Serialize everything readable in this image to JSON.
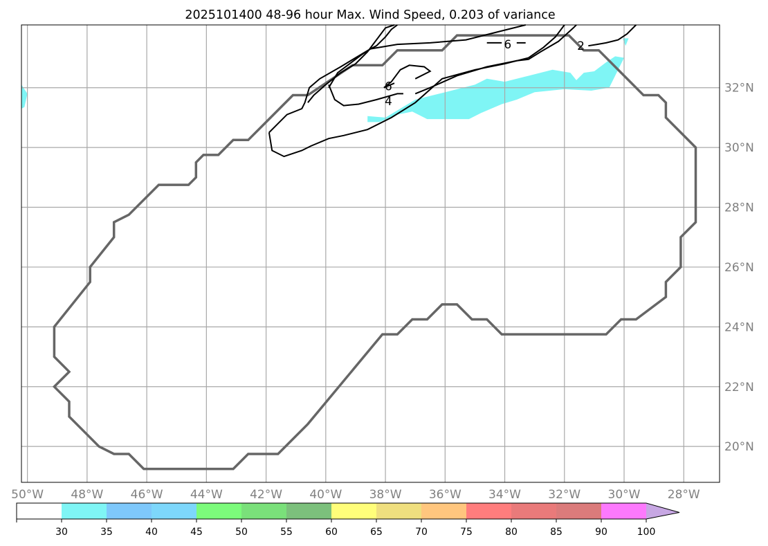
{
  "chart_data": {
    "type": "map-filled-contour",
    "title": "2025101400 48-96 hour Max. Wind Speed, 0.203 of variance",
    "lon_range": [
      -50.2,
      -26.8
    ],
    "lat_range": [
      18.8,
      34.1
    ],
    "lon_ticks": [
      -50,
      -48,
      -46,
      -44,
      -42,
      -40,
      -38,
      -36,
      -34,
      -32,
      -30,
      -28
    ],
    "lon_tick_labels": [
      "50°W",
      "48°W",
      "46°W",
      "44°W",
      "42°W",
      "40°W",
      "38°W",
      "36°W",
      "34°W",
      "32°W",
      "30°W",
      "28°W"
    ],
    "lat_ticks": [
      20,
      22,
      24,
      26,
      28,
      30,
      32
    ],
    "lat_tick_labels": [
      "20°N",
      "22°N",
      "24°N",
      "26°N",
      "28°N",
      "30°N",
      "32°N"
    ],
    "grid": true,
    "colorbar": {
      "boundaries": [
        0,
        30,
        35,
        40,
        45,
        50,
        55,
        60,
        65,
        70,
        75,
        80,
        85,
        90,
        100
      ],
      "colors": [
        "#ffffff",
        "#7ff5f5",
        "#7ec8fb",
        "#7dd7fb",
        "#7cfb7b",
        "#7ae07a",
        "#7cc07c",
        "#fffe7a",
        "#efdf7f",
        "#ffc67e",
        "#ff7d7d",
        "#e97a7a",
        "#db7b7b",
        "#fd79fd"
      ],
      "extend_color": "#c7a7e3",
      "tick_values": [
        30,
        35,
        40,
        45,
        50,
        55,
        60,
        65,
        70,
        75,
        80,
        85,
        90,
        100
      ],
      "tick_labels": [
        "30",
        "35",
        "40",
        "45",
        "50",
        "55",
        "60",
        "65",
        "70",
        "75",
        "80",
        "85",
        "90",
        "100"
      ]
    },
    "domain_outline": {
      "color": "#666666",
      "points": [
        [
          -49.1,
          24.0
        ],
        [
          -49.1,
          23.0
        ],
        [
          -48.6,
          22.5
        ],
        [
          -49.1,
          22.0
        ],
        [
          -48.6,
          21.5
        ],
        [
          -48.6,
          21.0
        ],
        [
          -47.6,
          20.0
        ],
        [
          -47.1,
          19.75
        ],
        [
          -46.6,
          19.75
        ],
        [
          -46.1,
          19.25
        ],
        [
          -43.1,
          19.25
        ],
        [
          -42.6,
          19.75
        ],
        [
          -41.6,
          19.75
        ],
        [
          -40.6,
          20.75
        ],
        [
          -38.1,
          23.75
        ],
        [
          -37.6,
          23.75
        ],
        [
          -37.1,
          24.25
        ],
        [
          -36.6,
          24.25
        ],
        [
          -36.1,
          24.75
        ],
        [
          -35.6,
          24.75
        ],
        [
          -35.1,
          24.25
        ],
        [
          -34.6,
          24.25
        ],
        [
          -34.1,
          23.75
        ],
        [
          -30.6,
          23.75
        ],
        [
          -30.1,
          24.25
        ],
        [
          -29.6,
          24.25
        ],
        [
          -28.6,
          25.0
        ],
        [
          -28.6,
          25.5
        ],
        [
          -28.1,
          26.0
        ],
        [
          -28.1,
          27.0
        ],
        [
          -27.6,
          27.5
        ],
        [
          -27.6,
          30.0
        ],
        [
          -28.6,
          31.0
        ],
        [
          -28.6,
          31.5
        ],
        [
          -28.85,
          31.75
        ],
        [
          -29.35,
          31.75
        ],
        [
          -30.85,
          33.25
        ],
        [
          -31.35,
          33.25
        ],
        [
          -31.85,
          33.75
        ],
        [
          -35.6,
          33.75
        ],
        [
          -36.1,
          33.25
        ],
        [
          -37.6,
          33.25
        ],
        [
          -38.1,
          32.75
        ],
        [
          -39.1,
          32.75
        ],
        [
          -40.6,
          31.75
        ],
        [
          -41.1,
          31.75
        ],
        [
          -42.6,
          30.25
        ],
        [
          -43.1,
          30.25
        ],
        [
          -43.6,
          29.75
        ],
        [
          -44.1,
          29.75
        ],
        [
          -44.35,
          29.5
        ],
        [
          -44.35,
          29.0
        ],
        [
          -44.6,
          28.75
        ],
        [
          -45.6,
          28.75
        ],
        [
          -46.6,
          27.75
        ],
        [
          -47.1,
          27.5
        ],
        [
          -47.1,
          27.0
        ],
        [
          -47.9,
          26.0
        ],
        [
          -47.9,
          25.5
        ]
      ]
    },
    "filled_regions": [
      {
        "level": 30,
        "color": "#7ff5f5",
        "points": [
          [
            -50.2,
            32.1
          ],
          [
            -50.0,
            31.8
          ],
          [
            -50.1,
            31.35
          ],
          [
            -50.2,
            31.3
          ]
        ]
      },
      {
        "level": 30,
        "color": "#7ff5f5",
        "points": [
          [
            -38.6,
            31.05
          ],
          [
            -38.0,
            31.0
          ],
          [
            -37.0,
            31.6
          ],
          [
            -36.2,
            31.8
          ],
          [
            -35.0,
            32.1
          ],
          [
            -34.6,
            32.3
          ],
          [
            -34.0,
            32.2
          ],
          [
            -33.4,
            32.35
          ],
          [
            -32.8,
            32.5
          ],
          [
            -32.4,
            32.6
          ],
          [
            -31.8,
            32.5
          ],
          [
            -31.6,
            32.25
          ],
          [
            -31.35,
            32.5
          ],
          [
            -31.0,
            32.55
          ],
          [
            -30.6,
            32.85
          ],
          [
            -30.3,
            33.05
          ],
          [
            -30.0,
            33.0
          ],
          [
            -30.5,
            32.0
          ],
          [
            -31.1,
            31.9
          ],
          [
            -32.0,
            31.95
          ],
          [
            -33.0,
            31.85
          ],
          [
            -33.6,
            31.6
          ],
          [
            -34.1,
            31.45
          ],
          [
            -34.8,
            31.15
          ],
          [
            -35.2,
            30.95
          ],
          [
            -36.0,
            30.95
          ],
          [
            -36.6,
            30.95
          ],
          [
            -37.1,
            31.2
          ],
          [
            -37.6,
            31.1
          ],
          [
            -38.2,
            30.85
          ],
          [
            -38.6,
            30.85
          ]
        ]
      },
      {
        "level": 30,
        "color": "#7ff5f5",
        "points": [
          [
            -30.05,
            33.65
          ],
          [
            -29.85,
            33.65
          ],
          [
            -29.95,
            33.4
          ]
        ]
      }
    ],
    "contours": [
      {
        "points": [
          [
            -41.9,
            30.5
          ],
          [
            -41.6,
            30.8
          ],
          [
            -41.3,
            31.1
          ],
          [
            -40.8,
            31.3
          ],
          [
            -40.7,
            31.5
          ],
          [
            -40.55,
            32.0
          ],
          [
            -40.2,
            32.3
          ],
          [
            -39.5,
            32.7
          ],
          [
            -39.0,
            33.0
          ],
          [
            -38.5,
            33.3
          ],
          [
            -37.6,
            33.45
          ],
          [
            -36.5,
            33.5
          ],
          [
            -35.3,
            33.6
          ],
          [
            -34.1,
            33.9
          ],
          [
            -33.3,
            34.1
          ]
        ]
      },
      {
        "points": [
          [
            -41.9,
            30.5
          ],
          [
            -41.8,
            29.9
          ],
          [
            -41.4,
            29.7
          ],
          [
            -40.8,
            29.9
          ],
          [
            -40.5,
            30.05
          ],
          [
            -39.9,
            30.3
          ],
          [
            -39.4,
            30.4
          ],
          [
            -38.6,
            30.6
          ],
          [
            -37.8,
            31.0
          ],
          [
            -37.0,
            31.5
          ],
          [
            -36.1,
            32.3
          ],
          [
            -35.0,
            32.6
          ],
          [
            -34.0,
            32.8
          ],
          [
            -33.2,
            33.0
          ],
          [
            -32.7,
            33.35
          ],
          [
            -32.3,
            33.7
          ],
          [
            -32.0,
            34.1
          ]
        ]
      },
      {
        "points": [
          [
            -39.9,
            32.0
          ],
          [
            -39.6,
            32.5
          ],
          [
            -39.2,
            32.8
          ],
          [
            -38.8,
            33.1
          ],
          [
            -38.5,
            33.3
          ],
          [
            -38.3,
            33.4
          ],
          [
            -38.0,
            33.7
          ],
          [
            -37.8,
            33.95
          ],
          [
            -37.6,
            34.1
          ]
        ]
      },
      {
        "points": [
          [
            -40.6,
            31.5
          ],
          [
            -40.4,
            31.75
          ],
          [
            -40.0,
            32.1
          ],
          [
            -39.5,
            32.5
          ],
          [
            -39.0,
            32.8
          ],
          [
            -38.8,
            33.0
          ],
          [
            -38.6,
            33.2
          ],
          [
            -38.3,
            33.6
          ],
          [
            -38.0,
            34.0
          ],
          [
            -37.7,
            34.1
          ]
        ]
      },
      {
        "points": [
          [
            -39.9,
            32.1
          ],
          [
            -39.7,
            31.6
          ],
          [
            -39.4,
            31.4
          ],
          [
            -38.9,
            31.45
          ],
          [
            -38.3,
            31.6
          ],
          [
            -37.6,
            31.8
          ],
          [
            -37.4,
            31.8
          ]
        ]
      },
      {
        "points": [
          [
            -37.0,
            31.8
          ],
          [
            -36.5,
            32.0
          ],
          [
            -35.6,
            32.4
          ],
          [
            -34.6,
            32.7
          ],
          [
            -33.6,
            32.9
          ],
          [
            -33.2,
            32.95
          ],
          [
            -32.8,
            33.2
          ],
          [
            -32.2,
            33.55
          ],
          [
            -31.7,
            34.0
          ],
          [
            -31.6,
            34.1
          ]
        ]
      },
      {
        "points": [
          [
            -31.2,
            33.4
          ],
          [
            -30.9,
            33.45
          ],
          [
            -30.6,
            33.5
          ],
          [
            -30.2,
            33.6
          ],
          [
            -29.9,
            33.8
          ],
          [
            -29.6,
            34.1
          ]
        ]
      },
      {
        "points": [
          [
            -37.7,
            32.15
          ],
          [
            -38.05,
            32.0
          ],
          [
            -37.8,
            32.2
          ],
          [
            -37.5,
            32.6
          ],
          [
            -37.2,
            32.75
          ],
          [
            -36.7,
            32.7
          ],
          [
            -36.5,
            32.55
          ],
          [
            -37.0,
            32.3
          ]
        ]
      },
      {
        "points": [
          [
            -34.6,
            33.5
          ],
          [
            -34.1,
            33.5
          ]
        ]
      },
      {
        "points": [
          [
            -33.6,
            33.5
          ],
          [
            -33.3,
            33.5
          ]
        ]
      }
    ],
    "contour_labels": [
      {
        "text": "6",
        "lon": -37.9,
        "lat": 32.05
      },
      {
        "text": "4",
        "lon": -37.9,
        "lat": 31.55
      },
      {
        "text": "6",
        "lon": -33.9,
        "lat": 33.45
      },
      {
        "text": "2",
        "lon": -31.45,
        "lat": 33.4
      }
    ]
  }
}
